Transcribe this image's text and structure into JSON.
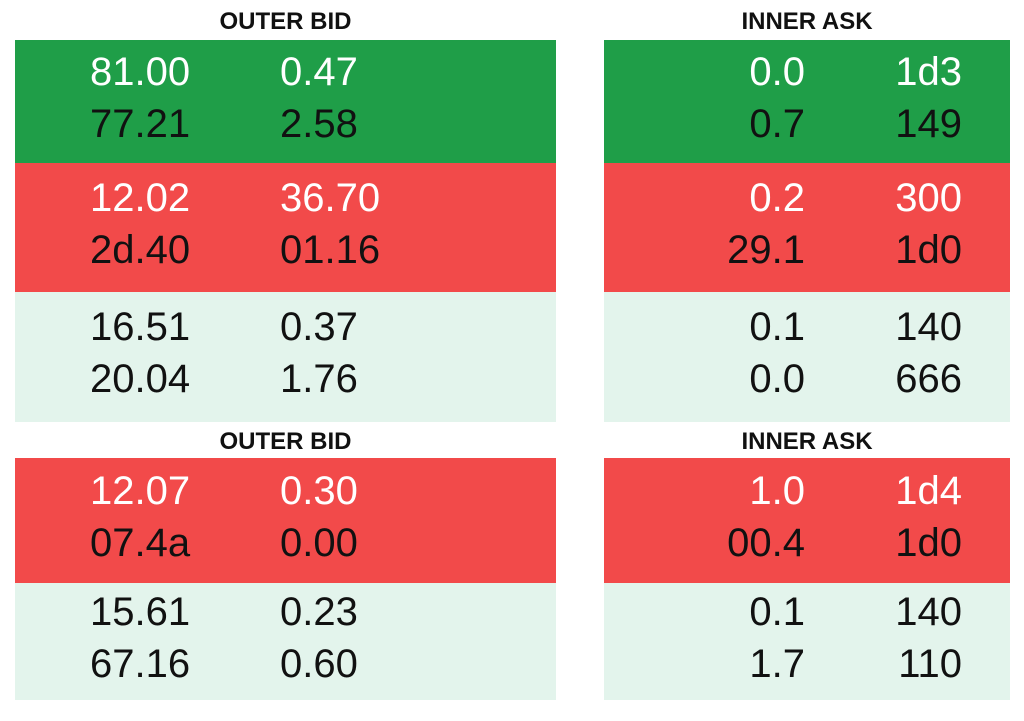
{
  "panels": [
    {
      "columns": [
        {
          "title": "OUTER BID",
          "blocks": [
            {
              "color": "#1f9e48",
              "rows": [
                [
                  "81.00",
                  "0.47"
                ],
                [
                  "77.21",
                  "2.58"
                ]
              ]
            },
            {
              "color": "#f24a4a",
              "rows": [
                [
                  "12.02",
                  "36.70"
                ],
                [
                  "2d.40",
                  "01.16"
                ]
              ]
            },
            {
              "color": "#e3f4ec",
              "rows": [
                [
                  "16.51",
                  "0.37"
                ],
                [
                  "20.04",
                  "1.76"
                ]
              ]
            }
          ]
        },
        {
          "title": "INNER ASK",
          "blocks": [
            {
              "color": "#1f9e48",
              "rows": [
                [
                  "0.0",
                  "1d3"
                ],
                [
                  "0.7",
                  "149"
                ]
              ]
            },
            {
              "color": "#f24a4a",
              "rows": [
                [
                  "0.2",
                  "300"
                ],
                [
                  "29.1",
                  "1d0"
                ]
              ]
            },
            {
              "color": "#e3f4ec",
              "rows": [
                [
                  "0.1",
                  "140"
                ],
                [
                  "0.0",
                  "666"
                ]
              ]
            }
          ]
        }
      ]
    },
    {
      "columns": [
        {
          "title": "OUTER BID",
          "blocks": [
            {
              "color": "#f24a4a",
              "rows": [
                [
                  "12.07",
                  "0.30"
                ],
                [
                  "07.4a",
                  "0.00"
                ]
              ]
            },
            {
              "color": "#e3f4ec",
              "rows": [
                [
                  "15.61",
                  "0.23"
                ],
                [
                  "67.16",
                  "0.60"
                ]
              ]
            }
          ]
        },
        {
          "title": "INNER ASK",
          "blocks": [
            {
              "color": "#f24a4a",
              "rows": [
                [
                  "1.0",
                  "1d4"
                ],
                [
                  "00.4",
                  "1d0"
                ]
              ]
            },
            {
              "color": "#e3f4ec",
              "rows": [
                [
                  "0.1",
                  "140"
                ],
                [
                  "1.7",
                  "110"
                ]
              ]
            }
          ]
        }
      ]
    }
  ]
}
